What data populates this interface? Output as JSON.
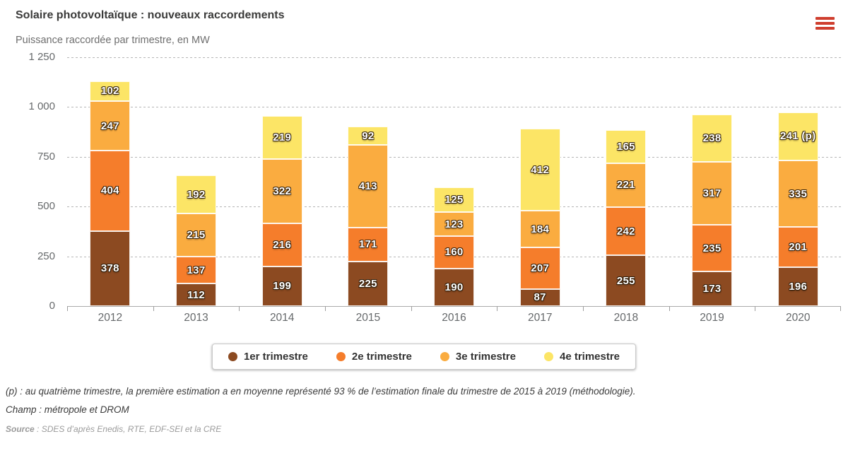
{
  "header": {
    "title": "Solaire photovoltaïque : nouveaux raccordements",
    "subtitle": "Puissance raccordée par trimestre, en MW",
    "menu_icon": "hamburger-menu-icon",
    "menu_color": "#cf3e2e"
  },
  "chart_data": {
    "type": "bar",
    "stacked": true,
    "title": "Solaire photovoltaïque : nouveaux raccordements",
    "subtitle": "Puissance raccordée par trimestre, en MW",
    "ylabel": "MW",
    "ylim": [
      0,
      1250
    ],
    "grid": "horizontal-dashed",
    "legend_position": "bottom",
    "categories": [
      "2012",
      "2013",
      "2014",
      "2015",
      "2016",
      "2017",
      "2018",
      "2019",
      "2020"
    ],
    "yticks": [
      {
        "value": 1250,
        "label": "1 250"
      },
      {
        "value": 1000,
        "label": "1 000"
      },
      {
        "value": 750,
        "label": "750"
      },
      {
        "value": 500,
        "label": "500"
      },
      {
        "value": 250,
        "label": "250"
      },
      {
        "value": 0,
        "label": "0"
      }
    ],
    "series": [
      {
        "name": "1er trimestre",
        "color": "#8C4A21",
        "values": [
          378,
          112,
          199,
          225,
          190,
          87,
          255,
          173,
          196
        ],
        "labels": [
          "378",
          "112",
          "199",
          "225",
          "190",
          "87",
          "255",
          "173",
          "196"
        ]
      },
      {
        "name": "2e trimestre",
        "color": "#F57D2B",
        "values": [
          404,
          137,
          216,
          171,
          160,
          207,
          242,
          235,
          201
        ],
        "labels": [
          "404",
          "137",
          "216",
          "171",
          "160",
          "207",
          "242",
          "235",
          "201"
        ]
      },
      {
        "name": "3e trimestre",
        "color": "#FAAC40",
        "values": [
          247,
          215,
          322,
          413,
          123,
          184,
          221,
          317,
          335
        ],
        "labels": [
          "247",
          "215",
          "322",
          "413",
          "123",
          "184",
          "221",
          "317",
          "335"
        ]
      },
      {
        "name": "4e trimestre",
        "color": "#FCE566",
        "values": [
          102,
          192,
          219,
          92,
          125,
          412,
          165,
          238,
          241
        ],
        "labels": [
          "102",
          "192",
          "219",
          "92",
          "125",
          "412",
          "165",
          "238",
          "241 (p)"
        ]
      }
    ]
  },
  "footer": {
    "note": "(p) : au quatrième trimestre, la première estimation a en moyenne représenté 93 % de l’estimation finale du trimestre de 2015 à 2019 (méthodologie).",
    "champ": "Champ : métropole et DROM",
    "source_label": "Source",
    "source_text": " : SDES d’après Enedis, RTE, EDF-SEI et la CRE"
  }
}
